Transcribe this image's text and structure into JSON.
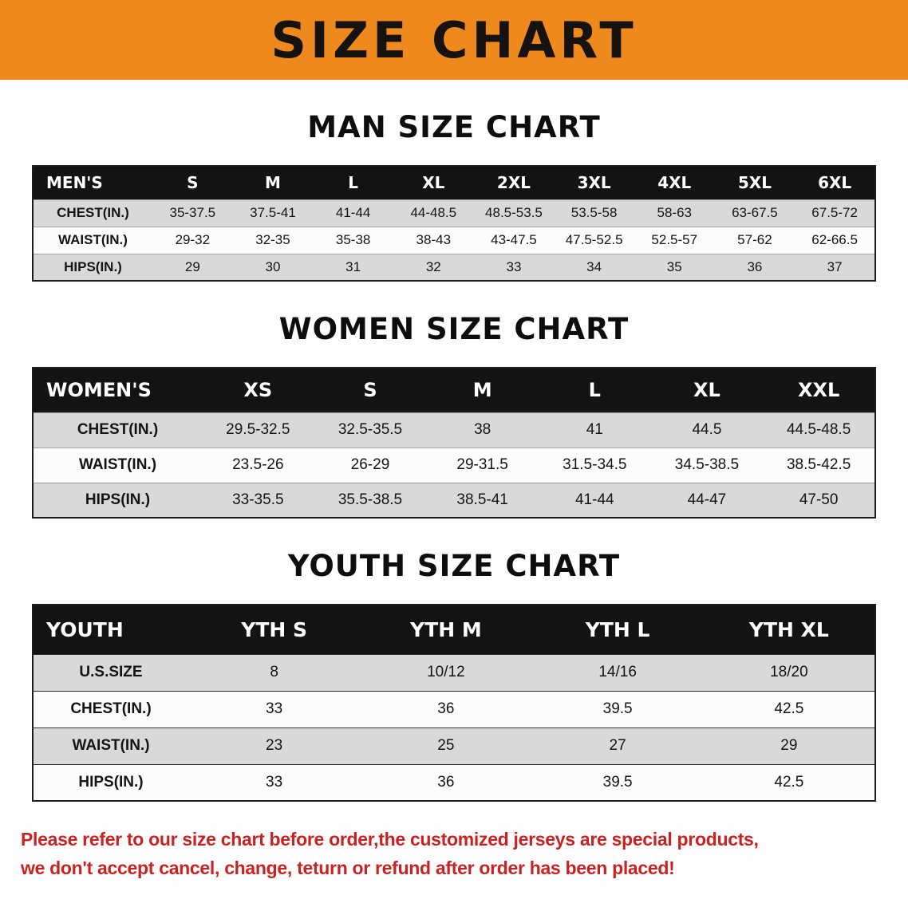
{
  "banner": {
    "title": "SIZE CHART"
  },
  "theme": {
    "banner_bg": "#ee8a1d",
    "table_header_bg": "#131313",
    "row_stripe": "#d9d9d9",
    "disclaimer_color": "#c62323"
  },
  "sections": [
    {
      "id": "men",
      "heading": "MAN SIZE CHART",
      "header": [
        "MEN'S",
        "S",
        "M",
        "L",
        "XL",
        "2XL",
        "3XL",
        "4XL",
        "5XL",
        "6XL"
      ],
      "rows": [
        [
          "CHEST(IN.)",
          "35-37.5",
          "37.5-41",
          "41-44",
          "44-48.5",
          "48.5-53.5",
          "53.5-58",
          "58-63",
          "63-67.5",
          "67.5-72"
        ],
        [
          "WAIST(IN.)",
          "29-32",
          "32-35",
          "35-38",
          "38-43",
          "43-47.5",
          "47.5-52.5",
          "52.5-57",
          "57-62",
          "62-66.5"
        ],
        [
          "HIPS(IN.)",
          "29",
          "30",
          "31",
          "32",
          "33",
          "34",
          "35",
          "36",
          "37"
        ]
      ]
    },
    {
      "id": "women",
      "heading": "WOMEN SIZE CHART",
      "header": [
        "WOMEN'S",
        "XS",
        "S",
        "M",
        "L",
        "XL",
        "XXL"
      ],
      "rows": [
        [
          "CHEST(IN.)",
          "29.5-32.5",
          "32.5-35.5",
          "38",
          "41",
          "44.5",
          "44.5-48.5"
        ],
        [
          "WAIST(IN.)",
          "23.5-26",
          "26-29",
          "29-31.5",
          "31.5-34.5",
          "34.5-38.5",
          "38.5-42.5"
        ],
        [
          "HIPS(IN.)",
          "33-35.5",
          "35.5-38.5",
          "38.5-41",
          "41-44",
          "44-47",
          "47-50"
        ]
      ]
    },
    {
      "id": "youth",
      "heading": "YOUTH SIZE CHART",
      "header": [
        "YOUTH",
        "YTH S",
        "YTH M",
        "YTH L",
        "YTH XL"
      ],
      "rows": [
        [
          "U.S.SIZE",
          "8",
          "10/12",
          "14/16",
          "18/20"
        ],
        [
          "CHEST(IN.)",
          "33",
          "36",
          "39.5",
          "42.5"
        ],
        [
          "WAIST(IN.)",
          "23",
          "25",
          "27",
          "29"
        ],
        [
          "HIPS(IN.)",
          "33",
          "36",
          "39.5",
          "42.5"
        ]
      ]
    }
  ],
  "disclaimer": {
    "lines": [
      "Please refer to our size chart before order,the customized jerseys are special products,",
      "we don't accept cancel, change, teturn or refund after order has been placed!"
    ]
  }
}
